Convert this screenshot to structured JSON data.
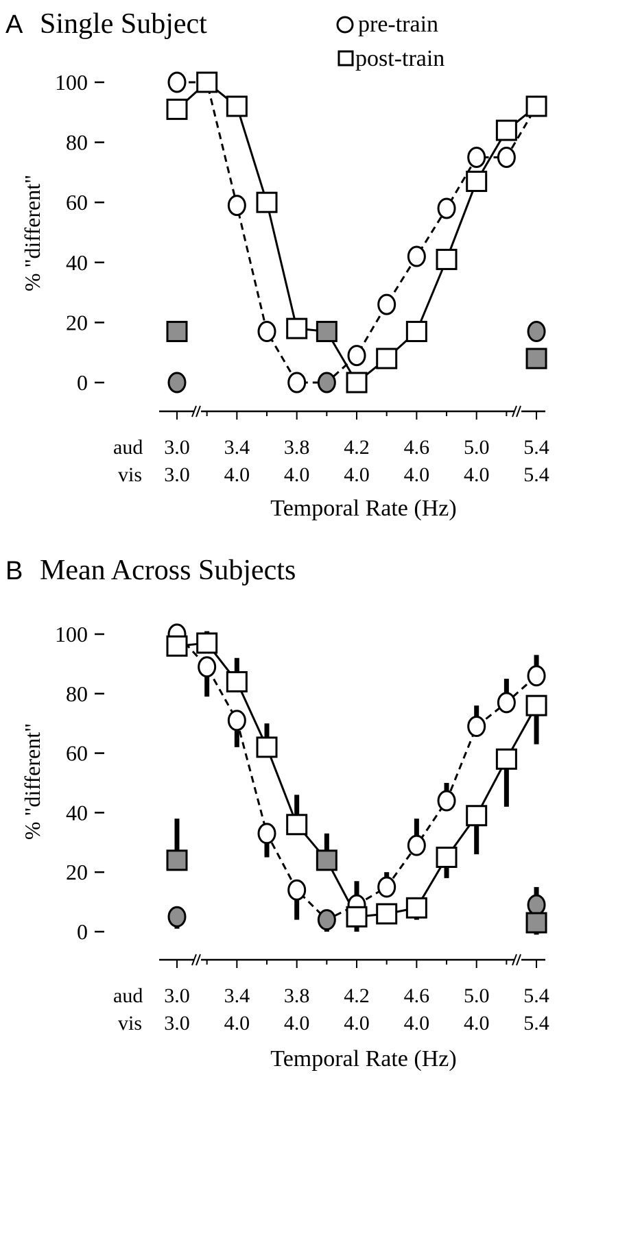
{
  "legend": {
    "pre": "pre-train",
    "post": "post-train"
  },
  "colors": {
    "catch_fill": "#8f8f8f",
    "line": "#000000"
  },
  "chart_data": [
    {
      "type": "line",
      "panel_letter": "A",
      "title": "Single Subject",
      "ylabel": "% \"different\"",
      "xlabel": "Temporal Rate (Hz)",
      "ylim": [
        0,
        100
      ],
      "yticks": [
        "0",
        "20",
        "40",
        "60",
        "80",
        "100"
      ],
      "row_labels": [
        "aud",
        "vis"
      ],
      "x_aud": [
        3.0,
        3.2,
        3.4,
        3.6,
        3.8,
        4.0,
        4.2,
        4.4,
        4.6,
        4.8,
        5.0,
        5.2,
        5.4
      ],
      "tick_labels_aud": [
        "3.0",
        "3.4",
        "3.8",
        "4.2",
        "4.6",
        "5.0",
        "5.4"
      ],
      "tick_labels_vis": [
        "3.0",
        "4.0",
        "4.0",
        "4.0",
        "4.0",
        "4.0",
        "5.4"
      ],
      "series": [
        {
          "name": "pre-train",
          "marker": "circle",
          "style": "dashed",
          "values": [
            100,
            100,
            59,
            17,
            0,
            0,
            9,
            26,
            42,
            58,
            75,
            75,
            92
          ]
        },
        {
          "name": "post-train",
          "marker": "square",
          "style": "solid",
          "values": [
            91,
            100,
            92,
            60,
            18,
            17,
            0,
            8,
            17,
            41,
            67,
            84,
            92
          ]
        }
      ],
      "catch_points": [
        {
          "x": 3.0,
          "series": "pre-train",
          "value": 0
        },
        {
          "x": 3.0,
          "series": "post-train",
          "value": 17
        },
        {
          "x": 4.0,
          "series": "pre-train",
          "value": 0
        },
        {
          "x": 4.0,
          "series": "post-train",
          "value": 17
        },
        {
          "x": 5.4,
          "series": "pre-train",
          "value": 17
        },
        {
          "x": 5.4,
          "series": "post-train",
          "value": 8
        }
      ]
    },
    {
      "type": "line",
      "panel_letter": "B",
      "title": "Mean Across Subjects",
      "ylabel": "% \"different\"",
      "xlabel": "Temporal Rate (Hz)",
      "ylim": [
        0,
        100
      ],
      "yticks": [
        "0",
        "20",
        "40",
        "60",
        "80",
        "100"
      ],
      "row_labels": [
        "aud",
        "vis"
      ],
      "x_aud": [
        3.0,
        3.2,
        3.4,
        3.6,
        3.8,
        4.0,
        4.2,
        4.4,
        4.6,
        4.8,
        5.0,
        5.2,
        5.4
      ],
      "tick_labels_aud": [
        "3.0",
        "3.4",
        "3.8",
        "4.2",
        "4.6",
        "5.0",
        "5.4"
      ],
      "tick_labels_vis": [
        "3.0",
        "4.0",
        "4.0",
        "4.0",
        "4.0",
        "4.0",
        "5.4"
      ],
      "series": [
        {
          "name": "pre-train",
          "marker": "circle",
          "style": "dashed",
          "values": [
            100,
            89,
            71,
            33,
            14,
            4,
            9,
            15,
            29,
            44,
            69,
            77,
            86
          ],
          "error_end": [
            null,
            79,
            62,
            25,
            4,
            0,
            17,
            20,
            38,
            50,
            76,
            85,
            93
          ]
        },
        {
          "name": "post-train",
          "marker": "square",
          "style": "solid",
          "values": [
            96,
            97,
            84,
            62,
            36,
            24,
            5,
            6,
            8,
            25,
            39,
            58,
            76
          ],
          "error_end": [
            null,
            101,
            92,
            70,
            46,
            33,
            0,
            null,
            4,
            18,
            26,
            42,
            63
          ]
        }
      ],
      "catch_points": [
        {
          "x": 3.0,
          "series": "pre-train",
          "value": 5,
          "error_end": 1
        },
        {
          "x": 3.0,
          "series": "post-train",
          "value": 24,
          "error_end": 38
        },
        {
          "x": 4.0,
          "series": "pre-train",
          "value": 4,
          "error_end": 0
        },
        {
          "x": 4.0,
          "series": "post-train",
          "value": 24,
          "error_end": 33
        },
        {
          "x": 5.4,
          "series": "pre-train",
          "value": 9,
          "error_end": 15
        },
        {
          "x": 5.4,
          "series": "post-train",
          "value": 3,
          "error_end": -1
        }
      ]
    }
  ]
}
